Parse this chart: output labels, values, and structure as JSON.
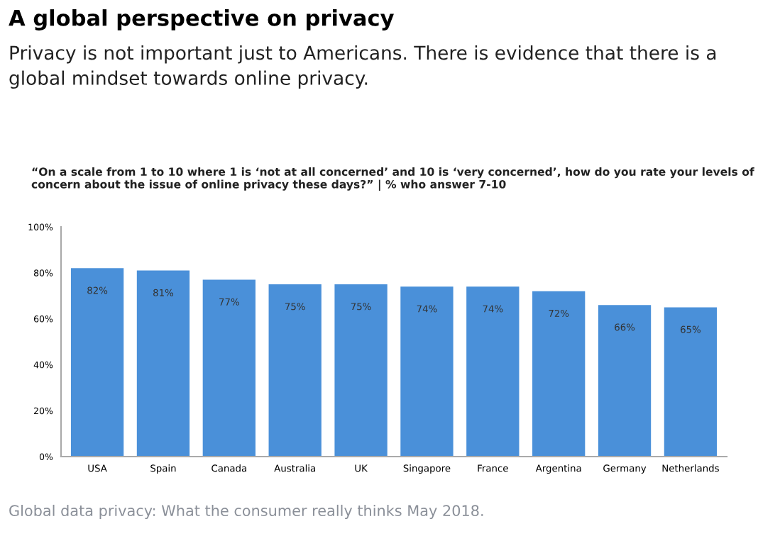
{
  "chart_data": {
    "type": "bar",
    "title": "A global perspective on privacy",
    "subtitle": "Privacy is not important just to Americans. There is evidence that there is a global mindset towards online privacy.",
    "annotations": [
      "“On a scale from 1 to 10 where 1 is ‘not at all concerned’ and 10 is ‘very concerned’, how do you rate your levels of concern about the issue of online privacy these days?” | % who answer 7-10",
      "Global data privacy: What the consumer really thinks May 2018."
    ],
    "categories": [
      "USA",
      "Spain",
      "Canada",
      "Australia",
      "UK",
      "Singapore",
      "France",
      "Argentina",
      "Germany",
      "Netherlands"
    ],
    "values": [
      82,
      81,
      77,
      75,
      75,
      74,
      74,
      72,
      66,
      65
    ],
    "value_labels": [
      "82%",
      "81%",
      "77%",
      "75%",
      "75%",
      "74%",
      "74%",
      "72%",
      "66%",
      "65%"
    ],
    "color": "#4a90d9",
    "ylim": [
      0,
      100
    ],
    "yticks": [
      {
        "value": 0,
        "label": "0%"
      },
      {
        "value": 20,
        "label": "20%"
      },
      {
        "value": 40,
        "label": "40%"
      },
      {
        "value": 60,
        "label": "60%"
      },
      {
        "value": 80,
        "label": "80%"
      },
      {
        "value": 100,
        "label": "100%"
      }
    ],
    "grid": false
  }
}
